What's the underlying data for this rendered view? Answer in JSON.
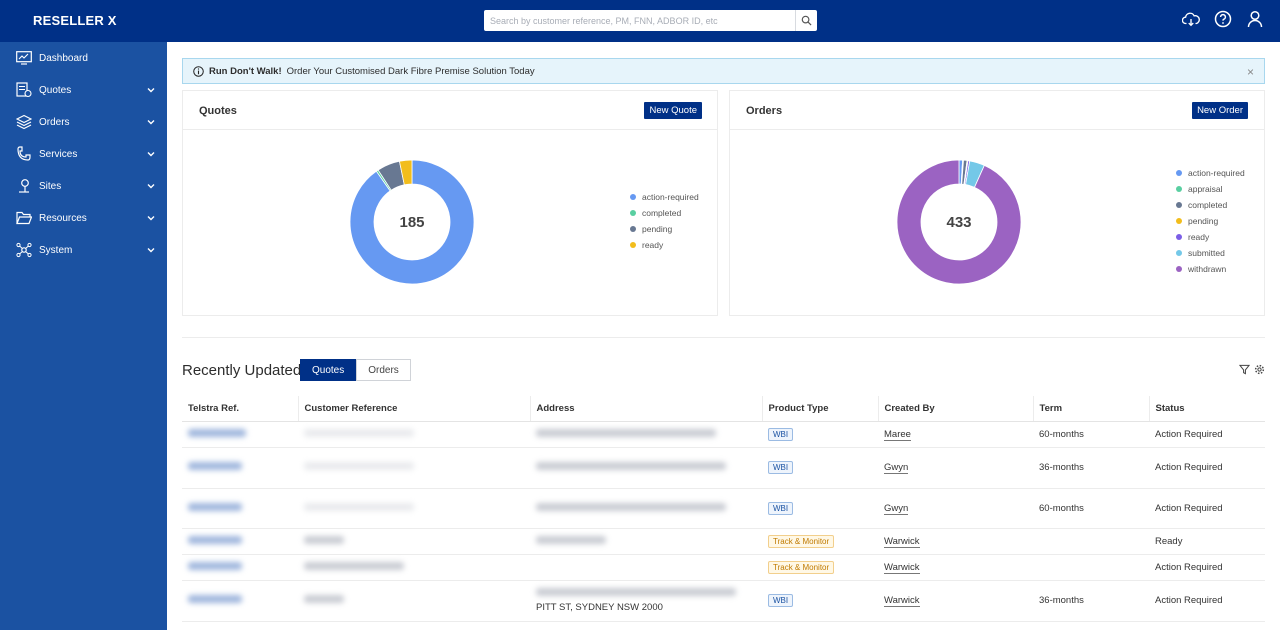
{
  "app": {
    "brand": "RESELLER X"
  },
  "search": {
    "placeholder": "Search by customer reference, PM, FNN, ADBOR ID, etc"
  },
  "top_icons": [
    "cloud-sync-icon",
    "help-icon",
    "user-icon"
  ],
  "sidebar": {
    "items": [
      {
        "label": "Dashboard",
        "icon": "dashboard-icon",
        "expandable": false
      },
      {
        "label": "Quotes",
        "icon": "quotes-icon",
        "expandable": true
      },
      {
        "label": "Orders",
        "icon": "orders-icon",
        "expandable": true
      },
      {
        "label": "Services",
        "icon": "services-icon",
        "expandable": true
      },
      {
        "label": "Sites",
        "icon": "sites-icon",
        "expandable": true
      },
      {
        "label": "Resources",
        "icon": "folder-icon",
        "expandable": true
      },
      {
        "label": "System",
        "icon": "system-icon",
        "expandable": true
      }
    ]
  },
  "banner": {
    "bold": "Run Don't Walk!",
    "text": "Order Your Customised Dark Fibre Premise Solution Today"
  },
  "quotes_card": {
    "title": "Quotes",
    "button": "New Quote",
    "total": "185"
  },
  "orders_card": {
    "title": "Orders",
    "button": "New Order",
    "total": "433"
  },
  "chart_data": [
    {
      "type": "pie",
      "title": "Quotes",
      "center_label": "185",
      "categories": [
        "action-required",
        "completed",
        "pending",
        "ready"
      ],
      "values": [
        167,
        1,
        11,
        6
      ],
      "colors": [
        "#6699f2",
        "#59cfa1",
        "#687892",
        "#f2bd1c"
      ],
      "legend": "right"
    },
    {
      "type": "pie",
      "title": "Orders",
      "center_label": "433",
      "categories": [
        "action-required",
        "appraisal",
        "completed",
        "pending",
        "ready",
        "submitted",
        "withdrawn"
      ],
      "values": [
        4,
        1,
        4,
        1,
        2,
        17,
        404
      ],
      "colors": [
        "#6699f2",
        "#59cfa1",
        "#687892",
        "#f2bd1c",
        "#7b5ee6",
        "#74c8e8",
        "#9b63c2"
      ],
      "legend": "right"
    }
  ],
  "recent": {
    "title": "Recently Updated",
    "tabs": [
      "Quotes",
      "Orders"
    ],
    "columns": [
      "Telstra Ref.",
      "Customer Reference",
      "Address",
      "Product Type",
      "Created By",
      "Term",
      "Status"
    ],
    "rows": [
      {
        "product": "WBI",
        "created_by": "Maree",
        "term": "60-months",
        "status": "Action Required",
        "address": ""
      },
      {
        "product": "WBI",
        "created_by": "Gwyn",
        "term": "36-months",
        "status": "Action Required",
        "address": ""
      },
      {
        "product": "WBI",
        "created_by": "Gwyn",
        "term": "60-months",
        "status": "Action Required",
        "address": ""
      },
      {
        "product": "Track & Monitor",
        "created_by": "Warwick",
        "term": "",
        "status": "Ready",
        "address": ""
      },
      {
        "product": "Track & Monitor",
        "created_by": "Warwick",
        "term": "",
        "status": "Action Required",
        "address": ""
      },
      {
        "product": "WBI",
        "created_by": "Warwick",
        "term": "36-months",
        "status": "Action Required",
        "address": "PITT ST, SYDNEY NSW 2000"
      }
    ]
  }
}
